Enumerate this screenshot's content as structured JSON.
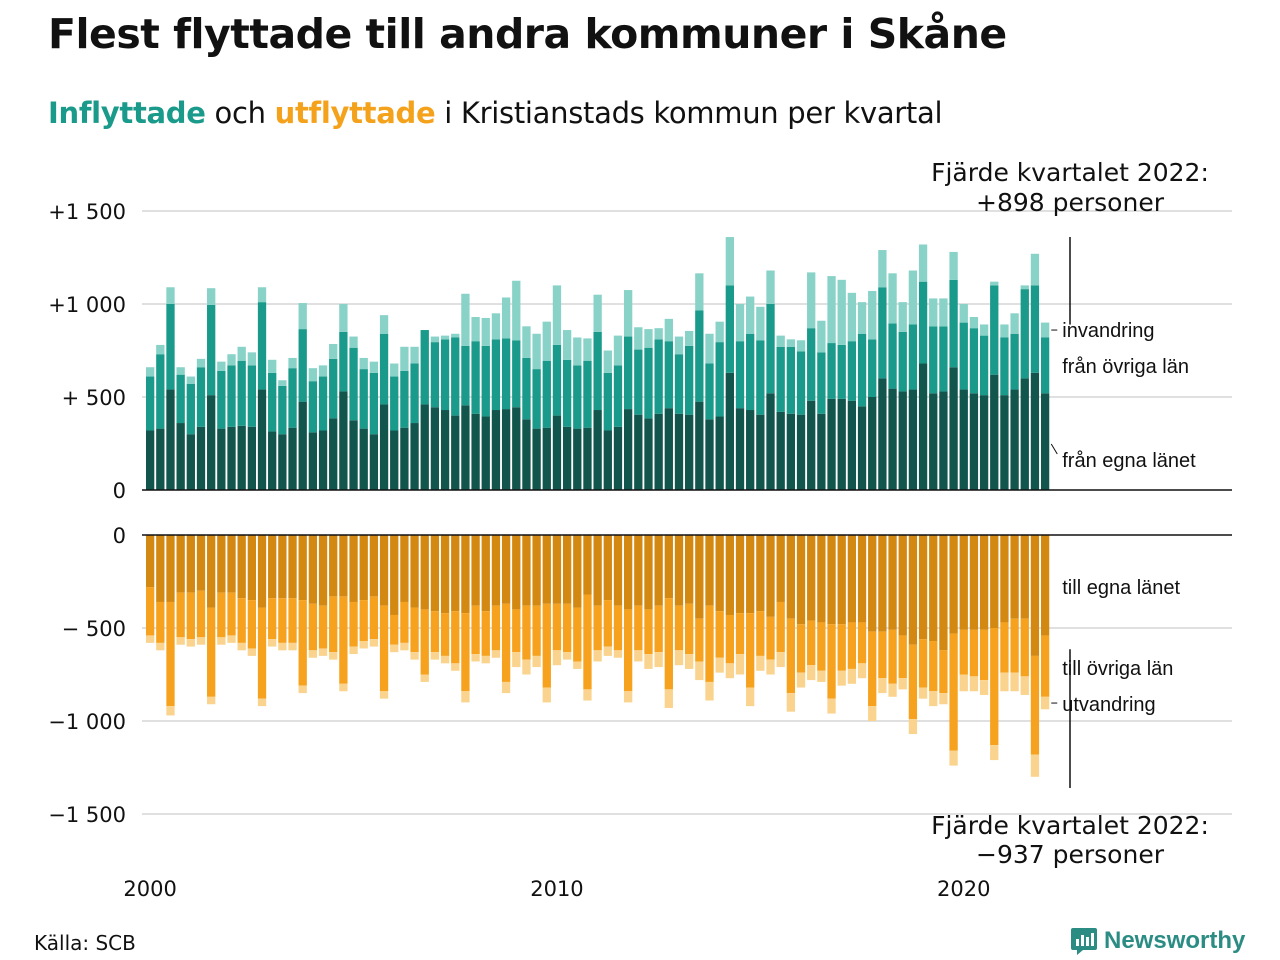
{
  "title": "Flest flyttade till andra kommuner i Skåne",
  "subtitle": {
    "in_word": "Inflyttade",
    "mid": " och ",
    "out_word": "utflyttade",
    "rest": " i Kristianstads kommun per kvartal"
  },
  "colors": {
    "in_own": "#12554d",
    "in_other": "#1a9a8a",
    "in_imm": "#88d2c8",
    "out_own": "#d38811",
    "out_other": "#f6a21f",
    "out_emig": "#fad48e",
    "grid": "#e0e0e0",
    "axis": "#111111"
  },
  "annotations": {
    "top_line1": "Fjärde kvartalet 2022:",
    "top_line2": "+898 personer",
    "bottom_line1": "Fjärde kvartalet 2022:",
    "bottom_line2": "−937 personer"
  },
  "source": "Källa: SCB",
  "brand": "Newsworthy",
  "chart_data": {
    "type": "bar",
    "subtype": "stacked, diverging (inflow above zero, outflow below zero)",
    "x_start": 2000,
    "x_interval": "quarter",
    "x_ticks": [
      {
        "value": 2000,
        "label": "2000"
      },
      {
        "value": 2010,
        "label": "2010"
      },
      {
        "value": 2020,
        "label": "2020"
      }
    ],
    "in_ticks": [
      {
        "value": 1500,
        "label": "+1 500"
      },
      {
        "value": 1000,
        "label": "+1 000"
      },
      {
        "value": 500,
        "label": "+  500"
      },
      {
        "value": 0,
        "label": "0"
      }
    ],
    "out_ticks": [
      {
        "value": 0,
        "label": "0"
      },
      {
        "value": -500,
        "label": "−  500"
      },
      {
        "value": -1000,
        "label": "−1 000"
      },
      {
        "value": -1500,
        "label": "−1 500"
      }
    ],
    "in_ylim": [
      0,
      1500
    ],
    "out_ylim": [
      -1500,
      0
    ],
    "series_in": [
      {
        "name": "från egna länet",
        "color_key": "in_own"
      },
      {
        "name": "från övriga län",
        "color_key": "in_other"
      },
      {
        "name": "invandring",
        "color_key": "in_imm"
      }
    ],
    "series_out": [
      {
        "name": "till egna länet",
        "color_key": "out_own"
      },
      {
        "name": "till övriga län",
        "color_key": "out_other"
      },
      {
        "name": "utvandring",
        "color_key": "out_emig"
      }
    ],
    "in_own": [
      320,
      330,
      540,
      360,
      300,
      340,
      510,
      330,
      340,
      345,
      340,
      540,
      315,
      300,
      335,
      475,
      310,
      320,
      385,
      530,
      375,
      330,
      300,
      460,
      320,
      335,
      360,
      460,
      445,
      430,
      400,
      455,
      410,
      395,
      430,
      435,
      445,
      380,
      330,
      335,
      400,
      340,
      330,
      335,
      430,
      320,
      340,
      435,
      405,
      385,
      410,
      440,
      410,
      405,
      475,
      380,
      395,
      630,
      440,
      430,
      405,
      520,
      420,
      410,
      405,
      480,
      410,
      490,
      490,
      480,
      450,
      500,
      600,
      545,
      530,
      540,
      680,
      520,
      530,
      660,
      540,
      520,
      510,
      620,
      510,
      540,
      600,
      630,
      520
    ],
    "in_other": [
      290,
      400,
      460,
      260,
      270,
      320,
      485,
      310,
      330,
      350,
      330,
      470,
      315,
      260,
      320,
      390,
      275,
      290,
      320,
      320,
      390,
      320,
      330,
      380,
      290,
      305,
      320,
      400,
      350,
      380,
      420,
      320,
      390,
      380,
      380,
      380,
      360,
      330,
      320,
      360,
      380,
      360,
      340,
      360,
      420,
      310,
      330,
      390,
      350,
      380,
      400,
      360,
      320,
      370,
      490,
      300,
      400,
      470,
      360,
      410,
      400,
      480,
      350,
      360,
      340,
      390,
      330,
      300,
      290,
      320,
      390,
      310,
      490,
      350,
      320,
      350,
      440,
      360,
      350,
      470,
      360,
      350,
      320,
      480,
      310,
      300,
      480,
      470,
      300
    ],
    "in_imm": [
      50,
      50,
      90,
      40,
      40,
      45,
      90,
      50,
      60,
      75,
      70,
      80,
      70,
      30,
      55,
      140,
      70,
      60,
      80,
      150,
      60,
      60,
      60,
      100,
      70,
      130,
      90,
      0,
      30,
      20,
      20,
      280,
      130,
      150,
      140,
      220,
      320,
      170,
      190,
      210,
      320,
      160,
      150,
      120,
      200,
      120,
      160,
      250,
      120,
      100,
      60,
      120,
      95,
      80,
      200,
      160,
      110,
      260,
      200,
      200,
      180,
      180,
      60,
      40,
      60,
      300,
      170,
      360,
      350,
      260,
      170,
      260,
      200,
      270,
      160,
      290,
      200,
      150,
      150,
      150,
      100,
      60,
      60,
      20,
      70,
      110,
      20,
      170,
      80
    ],
    "out_own": [
      -280,
      -360,
      -360,
      -310,
      -310,
      -300,
      -390,
      -310,
      -310,
      -340,
      -350,
      -390,
      -340,
      -340,
      -340,
      -350,
      -370,
      -380,
      -330,
      -330,
      -360,
      -350,
      -330,
      -380,
      -430,
      -360,
      -390,
      -400,
      -410,
      -420,
      -410,
      -420,
      -380,
      -410,
      -380,
      -370,
      -400,
      -380,
      -380,
      -370,
      -370,
      -370,
      -390,
      -320,
      -380,
      -350,
      -380,
      -400,
      -380,
      -400,
      -380,
      -340,
      -380,
      -370,
      -450,
      -380,
      -410,
      -430,
      -420,
      -420,
      -410,
      -440,
      -360,
      -450,
      -480,
      -460,
      -470,
      -480,
      -480,
      -470,
      -470,
      -520,
      -520,
      -510,
      -540,
      -590,
      -560,
      -570,
      -620,
      -530,
      -510,
      -510,
      -510,
      -500,
      -470,
      -450,
      -450,
      -650,
      -540
    ],
    "out_other": [
      -260,
      -220,
      -560,
      -240,
      -250,
      -250,
      -480,
      -240,
      -230,
      -240,
      -260,
      -490,
      -220,
      -240,
      -240,
      -460,
      -250,
      -230,
      -300,
      -470,
      -240,
      -220,
      -230,
      -460,
      -160,
      -220,
      -240,
      -350,
      -220,
      -230,
      -280,
      -420,
      -260,
      -240,
      -240,
      -420,
      -230,
      -290,
      -270,
      -450,
      -250,
      -260,
      -290,
      -510,
      -240,
      -250,
      -240,
      -440,
      -240,
      -240,
      -250,
      -490,
      -240,
      -270,
      -230,
      -410,
      -250,
      -260,
      -220,
      -400,
      -240,
      -230,
      -270,
      -400,
      -260,
      -240,
      -260,
      -400,
      -250,
      -250,
      -220,
      -400,
      -250,
      -290,
      -230,
      -400,
      -260,
      -270,
      -230,
      -630,
      -240,
      -250,
      -270,
      -630,
      -270,
      -290,
      -310,
      -530,
      -330
    ],
    "out_emig": [
      -40,
      -40,
      -50,
      -40,
      -40,
      -40,
      -40,
      -40,
      -40,
      -40,
      -40,
      -40,
      -40,
      -40,
      -40,
      -40,
      -40,
      -40,
      -40,
      -40,
      -40,
      -40,
      -40,
      -40,
      -40,
      -40,
      -40,
      -40,
      -40,
      -40,
      -40,
      -60,
      -40,
      -40,
      -40,
      -60,
      -80,
      -80,
      -60,
      -80,
      -80,
      -40,
      -40,
      -60,
      -60,
      -50,
      -40,
      -60,
      -60,
      -80,
      -80,
      -100,
      -80,
      -80,
      -100,
      -100,
      -80,
      -80,
      -110,
      -100,
      -80,
      -80,
      -80,
      -100,
      -80,
      -80,
      -60,
      -80,
      -80,
      -80,
      -80,
      -80,
      -80,
      -70,
      -60,
      -80,
      -60,
      -80,
      -60,
      -80,
      -90,
      -80,
      -80,
      -80,
      -100,
      -100,
      -100,
      -120,
      -67
    ]
  }
}
